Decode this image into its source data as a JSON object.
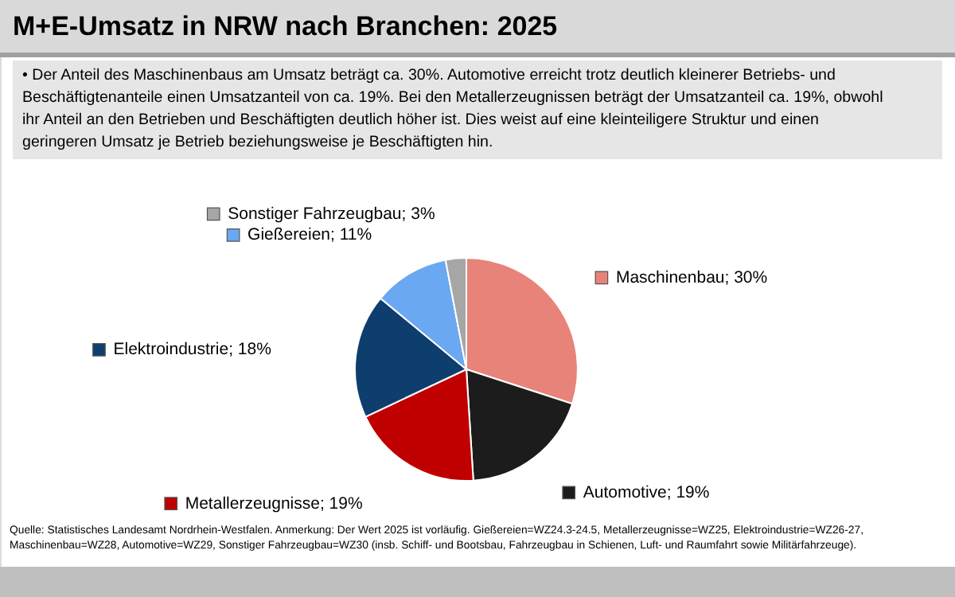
{
  "chart_data": {
    "type": "pie",
    "title": "M+E-Umsatz in NRW nach Branchen: 2025",
    "subtitle": "• Der Anteil des Maschinenbaus am Umsatz beträgt ca. 30%. Automotive erreicht trotz deutlich kleinerer Betriebs- und Beschäftigtenanteile einen Umsatzanteil von ca. 19%. Bei den Metallerzeugnissen beträgt der Umsatzanteil ca. 19%, obwohl ihr Anteil an den Betrieben und Beschäftigten deutlich höher ist. Dies weist auf eine kleinteiligere Struktur und einen geringeren Umsatz je Betrieb beziehungsweise je Beschäftigten hin.",
    "categories": [
      "Maschinenbau",
      "Automotive",
      "Metallerzeugnisse",
      "Elektroindustrie",
      "Gießereien",
      "Sonstiger Fahrzeugbau"
    ],
    "values": [
      30,
      19,
      19,
      18,
      11,
      3
    ],
    "legend": "top left",
    "value_labels": [
      "30%",
      "19%",
      "19%",
      "18%",
      "11%",
      "3%"
    ],
    "colors": [
      "#e8837a",
      "#1c1c1c",
      "#c00000",
      "#0e3e6e",
      "#6aa8f2",
      "#a6a6a6"
    ],
    "annotations": [
      "Quelle: Statistisches Landesamt Nordrhein-Westfalen. Anmerkung: Der Wert 2025 ist vorläufig. Gießereien=WZ24.3-24.5, Metallerzeugnisse=WZ25, Elektroindustrie=WZ26-27, Maschinenbau=WZ28, Automotive=WZ29, Sonstiger Fahrzeugbau=WZ30 (insb. Schiff- und Bootsbau, Fahrzeugbau in Schienen, Luft- und Raumfahrt sowie Militärfahrzeuge)."
    ]
  }
}
